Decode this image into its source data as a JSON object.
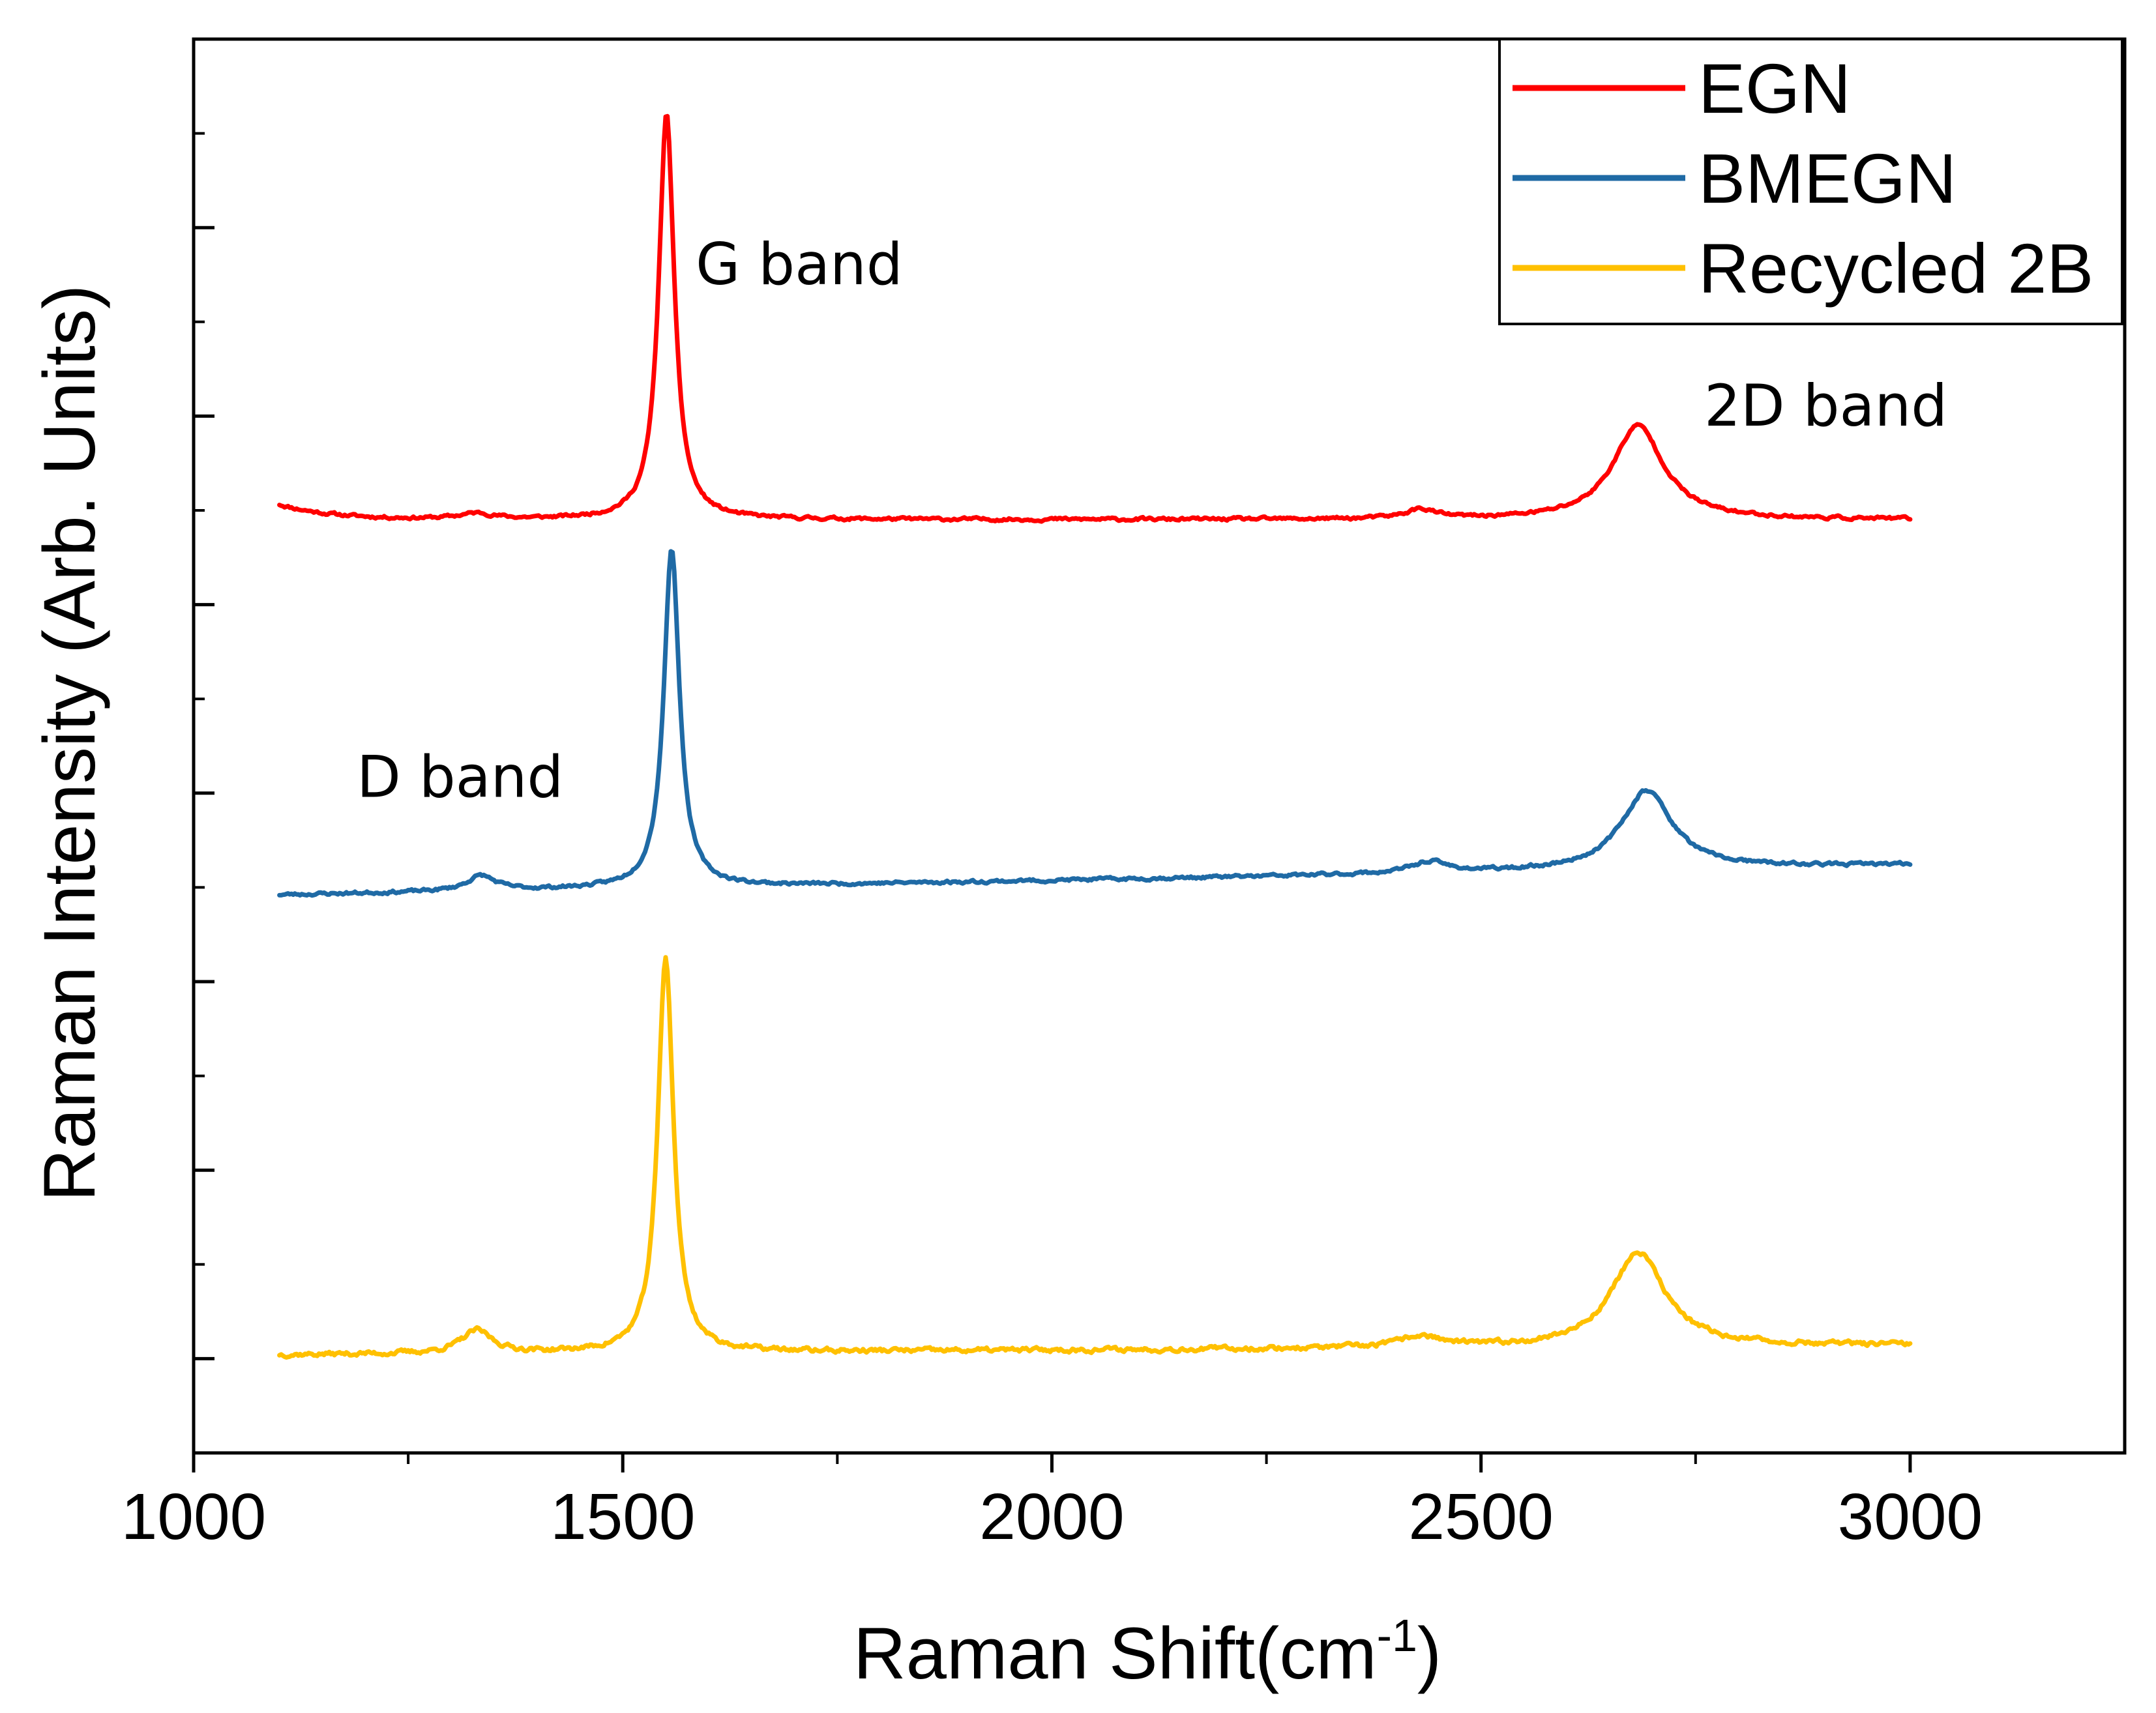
{
  "chart_data": {
    "type": "line",
    "title": "",
    "xlabel": "Raman Shift(cm",
    "xlabel_superscript": "-1",
    "xlabel_suffix": ")",
    "ylabel": "Raman Intensity (Arb. Units)",
    "xlim": [
      1000,
      3250
    ],
    "ylim": [
      -0.5,
      7.0
    ],
    "y_ticks_labeled": false,
    "x_major_ticks": [
      1000,
      1500,
      2000,
      2500,
      3000
    ],
    "x_tick_labels": [
      "1000",
      "1500",
      "2000",
      "2500",
      "3000"
    ],
    "x_minor_ticks": [
      1250,
      1750,
      2250,
      2750
    ],
    "y_major_ticks": [
      0,
      1,
      2,
      3,
      4,
      5,
      6
    ],
    "y_minor_ticks": [
      0.5,
      1.5,
      2.5,
      3.5,
      4.5,
      5.5,
      6.5
    ],
    "legend_position": "top-right",
    "x_range": [
      1100,
      3000
    ],
    "series": [
      {
        "name": "EGN",
        "color": "#ff0000",
        "baseline": 4.45,
        "noise": 0.008,
        "slope": 0,
        "seed": 11,
        "peaks": [
          {
            "center": 1330,
            "height": 0.03,
            "width": 25
          },
          {
            "center": 1551,
            "height": 2.15,
            "width": 11
          },
          {
            "center": 2430,
            "height": 0.05,
            "width": 22
          },
          {
            "center": 2683,
            "height": 0.5,
            "width": 36
          }
        ],
        "edge_rise": {
          "height": 0.08,
          "scale": 60
        }
      },
      {
        "name": "BMEGN",
        "color": "#1f6aa5",
        "baseline": 2.46,
        "noise": 0.008,
        "slope": 0.16,
        "seed": 23,
        "peaks": [
          {
            "center": 1335,
            "height": 0.08,
            "width": 20
          },
          {
            "center": 1557,
            "height": 1.8,
            "width": 11
          },
          {
            "center": 2440,
            "height": 0.06,
            "width": 25
          },
          {
            "center": 2693,
            "height": 0.42,
            "width": 36
          }
        ],
        "edge_rise": {
          "height": 0,
          "scale": 60
        }
      },
      {
        "name": "Recycled 2B",
        "color": "#ffc000",
        "baseline": 0.02,
        "noise": 0.012,
        "slope": 0.05,
        "seed": 37,
        "peaks": [
          {
            "center": 1330,
            "height": 0.12,
            "width": 22
          },
          {
            "center": 1550,
            "height": 2.1,
            "width": 11
          },
          {
            "center": 2430,
            "height": 0.06,
            "width": 28
          },
          {
            "center": 2683,
            "height": 0.5,
            "width": 38
          }
        ],
        "edge_rise": {
          "height": 0,
          "scale": 60
        }
      }
    ],
    "annotations": [
      {
        "text": "G band",
        "x": 1585,
        "y": 5.7
      },
      {
        "text": "D band",
        "x": 1190,
        "y": 2.98
      },
      {
        "text": "2D band",
        "x": 2760,
        "y": 4.95
      }
    ]
  }
}
